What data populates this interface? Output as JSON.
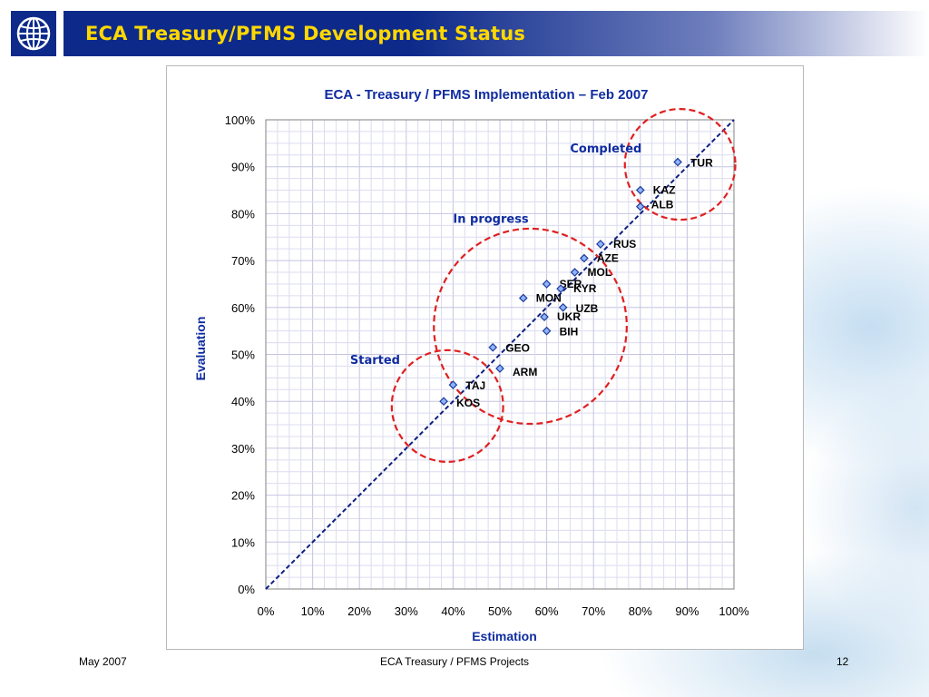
{
  "slide": {
    "title": "ECA Treasury/PFMS Development Status",
    "footer_left": "May 2007",
    "footer_center": "ECA Treasury / PFMS Projects",
    "footer_right": "12"
  },
  "colors": {
    "header_blue": "#0d2a8a",
    "title_yellow": "#ffd800",
    "marker_fill": "#8fb4ff",
    "marker_stroke": "#1f3c99",
    "diagonal": "#0d1f80",
    "circle": "#e02020",
    "axis_title": "#0f2ca0"
  },
  "chart_data": {
    "type": "scatter",
    "title": "ECA - Treasury / PFMS Implementation – Feb 2007",
    "xlabel": "Estimation",
    "ylabel": "Evaluation",
    "xlim": [
      0,
      100
    ],
    "ylim": [
      0,
      100
    ],
    "x_ticks": [
      "0%",
      "10%",
      "20%",
      "30%",
      "40%",
      "50%",
      "60%",
      "70%",
      "80%",
      "90%",
      "100%"
    ],
    "y_ticks": [
      "0%",
      "10%",
      "20%",
      "30%",
      "40%",
      "50%",
      "60%",
      "70%",
      "80%",
      "90%",
      "100%"
    ],
    "grid": true,
    "reference_line": "y = x",
    "points": [
      {
        "label": "TUR",
        "x": 88,
        "y": 91
      },
      {
        "label": "KAZ",
        "x": 80,
        "y": 85
      },
      {
        "label": "ALB",
        "x": 80,
        "y": 81.5
      },
      {
        "label": "RUS",
        "x": 71.5,
        "y": 73.5
      },
      {
        "label": "AZE",
        "x": 68,
        "y": 70.5
      },
      {
        "label": "MOL",
        "x": 66,
        "y": 67.5
      },
      {
        "label": "SER",
        "x": 60,
        "y": 65
      },
      {
        "label": "KYR",
        "x": 63,
        "y": 64
      },
      {
        "label": "MON",
        "x": 55,
        "y": 62
      },
      {
        "label": "UZB",
        "x": 63.5,
        "y": 60
      },
      {
        "label": "UKR",
        "x": 59.5,
        "y": 58
      },
      {
        "label": "BIH",
        "x": 60,
        "y": 55
      },
      {
        "label": "GEO",
        "x": 48.5,
        "y": 51.5
      },
      {
        "label": "ARM",
        "x": 50,
        "y": 47
      },
      {
        "label": "TAJ",
        "x": 40,
        "y": 43.5
      },
      {
        "label": "KOS",
        "x": 38,
        "y": 40
      }
    ],
    "annotations": [
      {
        "text": "Completed",
        "group": "completed"
      },
      {
        "text": "In progress",
        "group": "in-progress"
      },
      {
        "text": "Started",
        "group": "started"
      }
    ]
  }
}
